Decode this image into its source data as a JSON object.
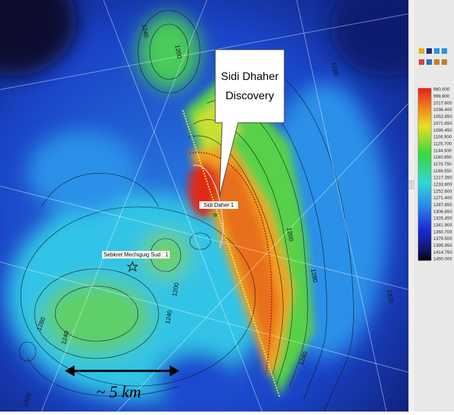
{
  "callout": {
    "line1": "Sidi Dhaher",
    "line2": "Discovery"
  },
  "wells": [
    {
      "label": "Sidi Daher 1"
    },
    {
      "label": "Sebkret Mechiguig Sud : 1"
    }
  ],
  "scale_bar": {
    "label": "~ 5 km"
  },
  "contour_labels": [
    "1240",
    "1200",
    "1280",
    "1320",
    "1240",
    "1200",
    "1240",
    "1280",
    "1320",
    "1240",
    "1200",
    "1280"
  ],
  "legend": {
    "values": [
      "980.000",
      "998.800",
      "1017.600",
      "1036.400",
      "1052.850",
      "1071.650",
      "1090.450",
      "1106.900",
      "1125.700",
      "1144.500",
      "1160.950",
      "1179.750",
      "1198.550",
      "1217.350",
      "1233.800",
      "1252.600",
      "1271.400",
      "1287.850",
      "1306.650",
      "1325.450",
      "1341.900",
      "1360.700",
      "1379.500",
      "1395.950",
      "1414.750",
      "1450.000"
    ]
  }
}
